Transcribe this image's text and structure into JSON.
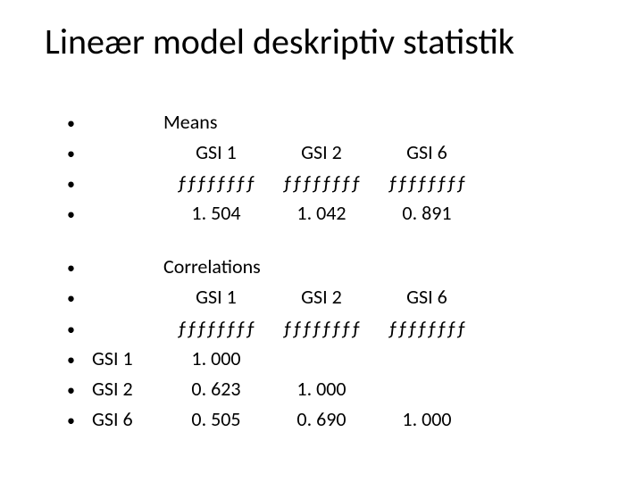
{
  "title": "Lineær model deskriptiv statistik",
  "bullet": "•",
  "means": {
    "label": "Means",
    "headers": [
      "GSI 1",
      "GSI 2",
      "GSI 6"
    ],
    "separator": "ƒƒƒƒƒƒƒƒ",
    "values": [
      "1. 504",
      "1. 042",
      "0. 891"
    ]
  },
  "correlations": {
    "label": "Correlations",
    "headers": [
      "GSI 1",
      "GSI 2",
      "GSI 6"
    ],
    "separator": "ƒƒƒƒƒƒƒƒ",
    "row_labels": [
      "GSI 1",
      "GSI 2",
      "GSI 6"
    ],
    "rows": [
      [
        "1. 000",
        "",
        ""
      ],
      [
        "0. 623",
        "1. 000",
        ""
      ],
      [
        "0. 505",
        "0. 690",
        "1. 000"
      ]
    ]
  }
}
